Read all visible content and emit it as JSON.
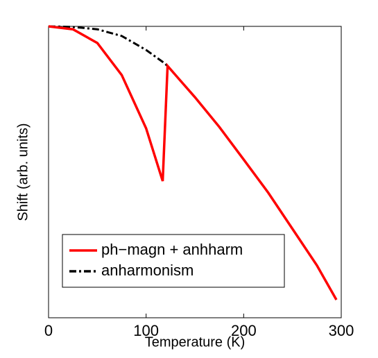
{
  "chart_data": {
    "type": "line",
    "x_label": "Temperature (K)",
    "y_label": "Shift (arb. units)",
    "x": [
      0,
      25,
      50,
      75,
      100,
      117,
      122,
      150,
      175,
      200,
      225,
      250,
      275,
      295
    ],
    "series": [
      {
        "name": "ph−magn + anhharm",
        "color": "#ff0000",
        "dash": "solid",
        "values": [
          1,
          0.99,
          0.943,
          0.833,
          0.65,
          0.469,
          0.864,
          0.757,
          0.655,
          0.543,
          0.43,
          0.305,
          0.18,
          0.062
        ]
      },
      {
        "name": "anharmonism",
        "color": "#000000",
        "dash": "dashdot",
        "values": [
          1,
          0.998,
          0.99,
          0.967,
          0.919,
          0.878,
          0.864,
          0.757,
          0.655,
          0.543,
          0.43,
          0.305,
          0.18,
          0.062
        ]
      }
    ],
    "xlim": [
      0,
      300
    ],
    "xticks": [
      0,
      100,
      200,
      300
    ],
    "ylim": [
      0,
      1
    ],
    "legend": "lower left"
  }
}
